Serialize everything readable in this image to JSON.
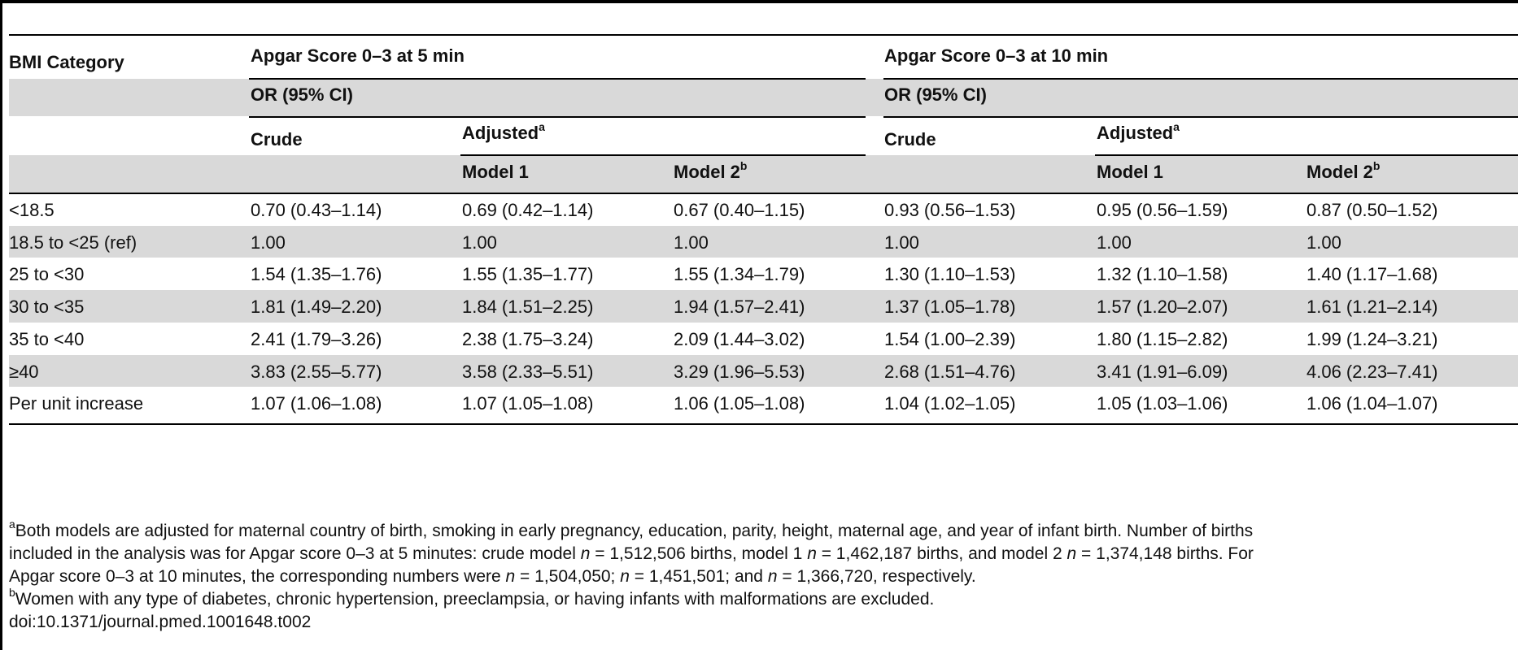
{
  "table": {
    "header": {
      "bmi_category": "BMI Category",
      "group_5min": "Apgar Score 0–3 at 5 min",
      "group_10min": "Apgar Score 0–3 at 10 min",
      "or_label": "OR (95% CI)",
      "crude": "Crude",
      "adjusted": "Adjusted",
      "adjusted_sup": "a",
      "model1": "Model 1",
      "model2": "Model 2",
      "model2_sup": "b"
    },
    "rows": [
      {
        "category": "<18.5",
        "values": [
          "0.70 (0.43–1.14)",
          "0.69 (0.42–1.14)",
          "0.67 (0.40–1.15)",
          "0.93 (0.56–1.53)",
          "0.95 (0.56–1.59)",
          "0.87 (0.50–1.52)"
        ]
      },
      {
        "category": "18.5 to <25 (ref)",
        "values": [
          "1.00",
          "1.00",
          "1.00",
          "1.00",
          "1.00",
          "1.00"
        ]
      },
      {
        "category": "25 to <30",
        "values": [
          "1.54 (1.35–1.76)",
          "1.55 (1.35–1.77)",
          "1.55 (1.34–1.79)",
          "1.30 (1.10–1.53)",
          "1.32 (1.10–1.58)",
          "1.40 (1.17–1.68)"
        ]
      },
      {
        "category": "30 to <35",
        "values": [
          "1.81 (1.49–2.20)",
          "1.84 (1.51–2.25)",
          "1.94 (1.57–2.41)",
          "1.37 (1.05–1.78)",
          "1.57 (1.20–2.07)",
          "1.61 (1.21–2.14)"
        ]
      },
      {
        "category": "35 to <40",
        "values": [
          "2.41 (1.79–3.26)",
          "2.38 (1.75–3.24)",
          "2.09 (1.44–3.02)",
          "1.54 (1.00–2.39)",
          "1.80 (1.15–2.82)",
          "1.99 (1.24–3.21)"
        ]
      },
      {
        "category": "≥40",
        "values": [
          "3.83 (2.55–5.77)",
          "3.58 (2.33–5.51)",
          "3.29 (1.96–5.53)",
          "2.68 (1.51–4.76)",
          "3.41 (1.91–6.09)",
          "4.06 (2.23–7.41)"
        ]
      },
      {
        "category": "Per unit increase",
        "values": [
          "1.07 (1.06–1.08)",
          "1.07 (1.05–1.08)",
          "1.06 (1.05–1.08)",
          "1.04 (1.02–1.05)",
          "1.05 (1.03–1.06)",
          "1.06 (1.04–1.07)"
        ]
      }
    ]
  },
  "footnotes": {
    "a_marker": "a",
    "a_line1": "Both models are adjusted for maternal country of birth, smoking in early pregnancy, education, parity, height, maternal age, and year of infant birth. Number of births",
    "a_line2_p1": "included in the analysis was for Apgar score 0–3 at 5 minutes: crude model ",
    "a_line2_n1": "n",
    "a_line2_p2": " = 1,512,506 births, model 1 ",
    "a_line2_n2": "n",
    "a_line2_p3": " = 1,462,187 births, and model 2 ",
    "a_line2_n3": "n",
    "a_line2_p4": " = 1,374,148 births. For",
    "a_line3_p1": "Apgar score 0–3 at 10 minutes, the corresponding numbers were ",
    "a_line3_n1": "n",
    "a_line3_p2": " = 1,504,050; ",
    "a_line3_n2": "n",
    "a_line3_p3": " = 1,451,501; and ",
    "a_line3_n3": "n",
    "a_line3_p4": " = 1,366,720, respectively.",
    "b_marker": "b",
    "b_text": "Women with any type of diabetes, chronic hypertension, preeclampsia, or having infants with malformations are excluded.",
    "doi": "doi:10.1371/journal.pmed.1001648.t002"
  }
}
